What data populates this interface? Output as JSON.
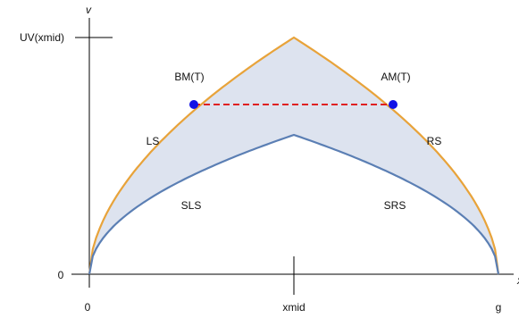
{
  "axes": {
    "y_axis_name": "v",
    "x_axis_name": "x",
    "y_ticks": {
      "top": "UV(xmid)",
      "zero": "0"
    },
    "x_ticks": {
      "left": "0",
      "middle": "xmid",
      "right": "g"
    }
  },
  "curves": {
    "upper_left": "LS",
    "upper_right": "RS",
    "lower_left": "SLS",
    "lower_right": "SRS",
    "upper_color": "#E8A33A",
    "lower_color": "#5B7FB4",
    "fill_color": "#DDE3EF"
  },
  "points": {
    "left_point": "BM(T)",
    "right_point": "AM(T)",
    "point_color": "#1212E6",
    "connector_color": "#E02020"
  }
}
